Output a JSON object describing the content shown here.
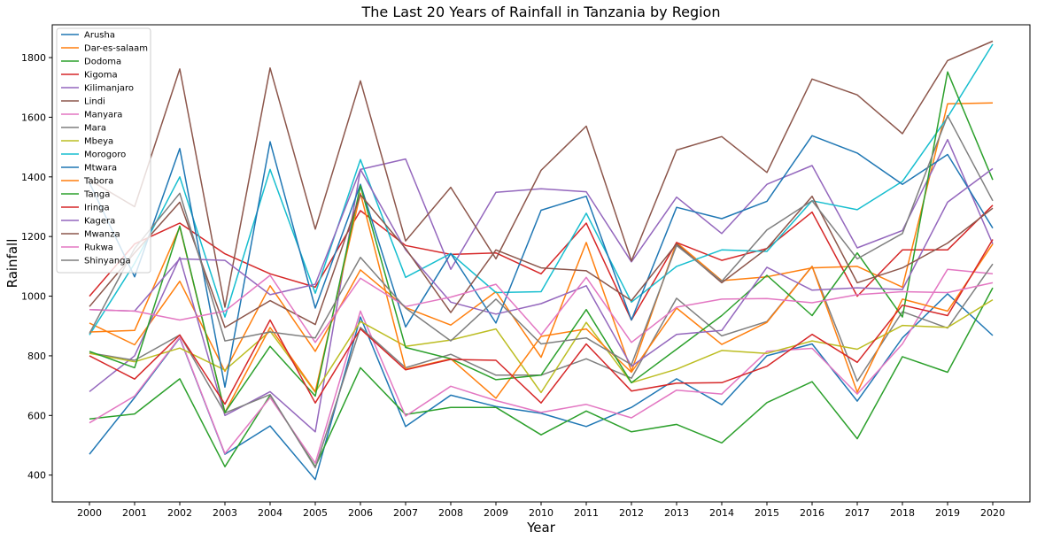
{
  "chart_data": {
    "type": "line",
    "title": "The Last 20 Years of Rainfall in Tanzania by Region",
    "xlabel": "Year",
    "ylabel": "Rainfall",
    "x": [
      "2000",
      "2001",
      "2002",
      "2003",
      "2004",
      "2005",
      "2006",
      "2007",
      "2008",
      "2009",
      "2010",
      "2011",
      "2012",
      "2013",
      "2014",
      "2015",
      "2016",
      "2017",
      "2018",
      "2019",
      "2020"
    ],
    "ylim": [
      310,
      1910
    ],
    "yticks": [
      400,
      600,
      800,
      1000,
      1200,
      1400,
      1600,
      1800
    ],
    "grid": false,
    "legend_position": "top-left",
    "series": [
      {
        "name": "Arusha",
        "color": "#1f77b4",
        "values": [
          470,
          660,
          860,
          470,
          565,
          385,
          930,
          563,
          668,
          630,
          607,
          563,
          627,
          723,
          636,
          800,
          840,
          648,
          860,
          1008,
          868
        ]
      },
      {
        "name": "Dar-es-salaam",
        "color": "#ff7f0e",
        "values": [
          910,
          837,
          1050,
          748,
          1035,
          815,
          1088,
          962,
          903,
          1015,
          795,
          1180,
          748,
          1180,
          1052,
          1065,
          1095,
          1100,
          1030,
          1645,
          1648
        ]
      },
      {
        "name": "Dodoma",
        "color": "#2ca02c",
        "values": [
          588,
          605,
          723,
          428,
          668,
          428,
          760,
          603,
          627,
          627,
          535,
          615,
          545,
          570,
          508,
          643,
          713,
          522,
          797,
          745,
          1028
        ]
      },
      {
        "name": "Kigoma",
        "color": "#d62728",
        "values": [
          1000,
          1175,
          1245,
          1142,
          1075,
          1030,
          1287,
          1170,
          1140,
          1145,
          1075,
          1245,
          920,
          1180,
          1120,
          1160,
          1282,
          1000,
          1155,
          1155,
          1305
        ]
      },
      {
        "name": "Kilimanjaro",
        "color": "#9467bd",
        "values": [
          680,
          800,
          1130,
          600,
          680,
          545,
          1425,
          1460,
          1090,
          1348,
          1360,
          1350,
          1115,
          1332,
          1210,
          1375,
          1438,
          1162,
          1220,
          1525,
          1175
        ]
      },
      {
        "name": "Lindi",
        "color": "#8c564b",
        "values": [
          1390,
          1300,
          1762,
          963,
          1765,
          1225,
          1722,
          1185,
          1365,
          1125,
          1422,
          1570,
          1118,
          1490,
          1535,
          1415,
          1728,
          1675,
          1545,
          1790,
          1855
        ]
      },
      {
        "name": "Manyara",
        "color": "#e377c2",
        "values": [
          575,
          665,
          862,
          472,
          660,
          440,
          950,
          598,
          698,
          650,
          610,
          637,
          592,
          685,
          672,
          815,
          825,
          672,
          840,
          1090,
          1075
        ]
      },
      {
        "name": "Mara",
        "color": "#7f7f7f",
        "values": [
          810,
          785,
          870,
          608,
          670,
          425,
          895,
          760,
          805,
          735,
          735,
          790,
          725,
          993,
          867,
          915,
          1100,
          715,
          948,
          893,
          1108
        ]
      },
      {
        "name": "Mbeya",
        "color": "#bcbd22",
        "values": [
          808,
          780,
          826,
          752,
          883,
          678,
          915,
          832,
          853,
          890,
          677,
          912,
          710,
          755,
          818,
          808,
          850,
          822,
          902,
          895,
          988
        ]
      },
      {
        "name": "Morogoro",
        "color": "#17becf",
        "values": [
          870,
          1110,
          1400,
          930,
          1425,
          1010,
          1458,
          1063,
          1143,
          1012,
          1015,
          1278,
          980,
          1100,
          1155,
          1150,
          1320,
          1290,
          1385,
          1600,
          1845
        ]
      },
      {
        "name": "Mtwara",
        "color": "#1f77b4",
        "values": [
          1380,
          1065,
          1495,
          695,
          1518,
          960,
          1375,
          897,
          1143,
          910,
          1288,
          1335,
          920,
          1298,
          1260,
          1318,
          1538,
          1480,
          1375,
          1475,
          1228
        ]
      },
      {
        "name": "Tabora",
        "color": "#ff7f0e",
        "values": [
          880,
          885,
          1232,
          610,
          895,
          680,
          1345,
          755,
          790,
          658,
          865,
          890,
          745,
          960,
          838,
          912,
          1100,
          678,
          990,
          950,
          1175
        ]
      },
      {
        "name": "Tanga",
        "color": "#2ca02c",
        "values": [
          815,
          760,
          1235,
          610,
          832,
          665,
          1370,
          828,
          790,
          720,
          735,
          955,
          710,
          822,
          935,
          1070,
          935,
          1145,
          930,
          1752,
          1390
        ]
      },
      {
        "name": "Iringa",
        "color": "#d62728",
        "values": [
          800,
          722,
          870,
          638,
          920,
          642,
          890,
          753,
          788,
          785,
          642,
          840,
          682,
          708,
          710,
          765,
          872,
          778,
          970,
          935,
          1190
        ]
      },
      {
        "name": "Kagera",
        "color": "#9467bd",
        "values": [
          955,
          950,
          1125,
          1120,
          1005,
          1040,
          1425,
          1155,
          980,
          940,
          975,
          1035,
          765,
          872,
          885,
          1097,
          1020,
          1028,
          1022,
          1315,
          1428
        ]
      },
      {
        "name": "Mwanza",
        "color": "#8c564b",
        "values": [
          965,
          1145,
          1315,
          895,
          985,
          905,
          1340,
          1160,
          945,
          1155,
          1095,
          1085,
          985,
          1175,
          1045,
          1160,
          1335,
          1045,
          1095,
          1178,
          1295
        ]
      },
      {
        "name": "Rukwa",
        "color": "#e377c2",
        "values": [
          955,
          950,
          920,
          950,
          1070,
          845,
          1060,
          965,
          997,
          1040,
          870,
          1063,
          845,
          963,
          990,
          992,
          978,
          1005,
          1015,
          1012,
          1045
        ]
      },
      {
        "name": "Shinyanga",
        "color": "#7f7f7f",
        "values": [
          875,
          1160,
          1345,
          850,
          880,
          860,
          1130,
          960,
          850,
          990,
          840,
          860,
          770,
          1170,
          1050,
          1222,
          1320,
          1125,
          1210,
          1605,
          1320
        ]
      }
    ]
  }
}
